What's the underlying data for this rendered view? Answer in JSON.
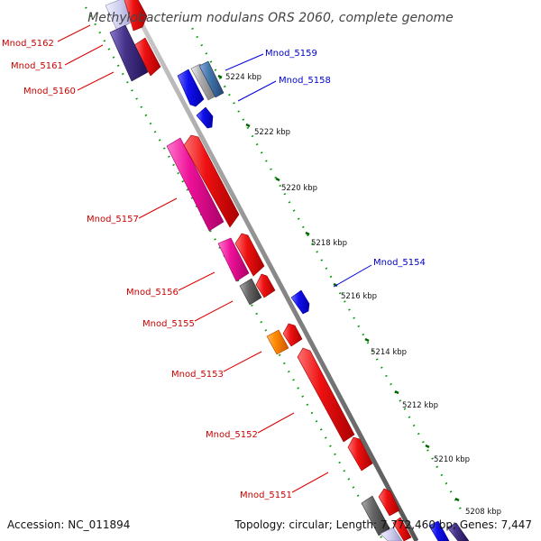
{
  "title": "Methylobacterium nodulans ORS 2060, complete genome",
  "accession": "Accession: NC_011894",
  "topology": "Topology: circular; Length: 7,772,460 bp; Genes: 7,447",
  "scale_labels": [
    "5224 kbp",
    "5222 kbp",
    "5220 kbp",
    "5218 kbp",
    "5216 kbp",
    "5214 kbp",
    "5212 kbp",
    "5210 kbp",
    "5208 kbp"
  ],
  "gene_labels": {
    "left": [
      "Mnod_5162",
      "Mnod_5161",
      "Mnod_5160",
      "Mnod_5157",
      "Mnod_5156",
      "Mnod_5155",
      "Mnod_5153",
      "Mnod_5152",
      "Mnod_5151"
    ],
    "right": [
      "Mnod_5159",
      "Mnod_5158",
      "Mnod_5154"
    ]
  },
  "colors": {
    "forward_strand": "#ee1111",
    "reverse_strand": "#1111ee",
    "backbone": "#888888",
    "scale_ticks": "#008800",
    "pink_gene": "#ee1199",
    "purple_gene": "#443388",
    "gray_gene": "#666666",
    "orange_gene": "#ff8800",
    "steelblue_gene": "#4477aa",
    "silver_gene": "#aaaaaa"
  }
}
